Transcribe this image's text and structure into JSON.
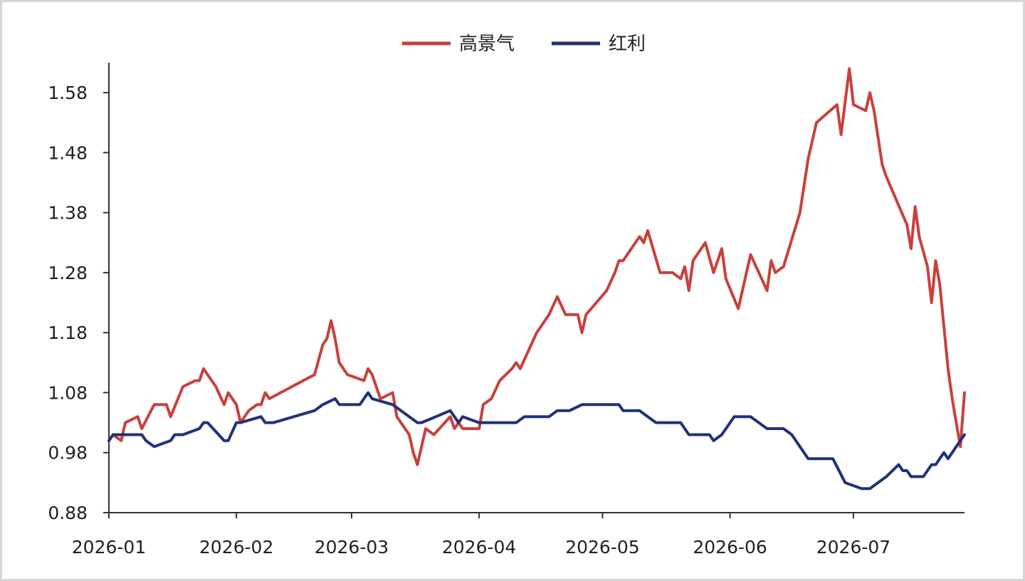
{
  "chart_data": {
    "type": "line",
    "title": "",
    "xlabel": "",
    "ylabel": "",
    "x_tick_labels": [
      "2026-01",
      "2026-02",
      "2026-03",
      "2026-04",
      "2026-05",
      "2026-06",
      "2026-07"
    ],
    "y_ticks": [
      0.88,
      0.98,
      1.08,
      1.18,
      1.28,
      1.38,
      1.48,
      1.58
    ],
    "y_tick_labels": [
      "0.88",
      "0.98",
      "1.08",
      "1.18",
      "1.28",
      "1.38",
      "1.48",
      "1.58"
    ],
    "ylim": [
      0.88,
      1.63
    ],
    "xlim": [
      "2026-01-01",
      "2026-07-28"
    ],
    "grid": false,
    "legend_position": "top-center",
    "series": [
      {
        "name": "高景气",
        "color": "#c8413c",
        "points": [
          [
            "2026-01-01",
            1.0
          ],
          [
            "2026-01-02",
            1.01
          ],
          [
            "2026-01-04",
            1.0
          ],
          [
            "2026-01-05",
            1.03
          ],
          [
            "2026-01-08",
            1.04
          ],
          [
            "2026-01-09",
            1.02
          ],
          [
            "2026-01-12",
            1.06
          ],
          [
            "2026-01-15",
            1.06
          ],
          [
            "2026-01-16",
            1.04
          ],
          [
            "2026-01-19",
            1.09
          ],
          [
            "2026-01-22",
            1.1
          ],
          [
            "2026-01-23",
            1.1
          ],
          [
            "2026-01-24",
            1.12
          ],
          [
            "2026-01-25",
            1.11
          ],
          [
            "2026-01-27",
            1.09
          ],
          [
            "2026-01-29",
            1.06
          ],
          [
            "2026-01-30",
            1.08
          ],
          [
            "2026-02-01",
            1.06
          ],
          [
            "2026-02-02",
            1.03
          ],
          [
            "2026-02-04",
            1.05
          ],
          [
            "2026-02-06",
            1.06
          ],
          [
            "2026-02-07",
            1.06
          ],
          [
            "2026-02-08",
            1.08
          ],
          [
            "2026-02-09",
            1.07
          ],
          [
            "2026-02-20",
            1.11
          ],
          [
            "2026-02-22",
            1.16
          ],
          [
            "2026-02-23",
            1.17
          ],
          [
            "2026-02-24",
            1.2
          ],
          [
            "2026-02-25",
            1.17
          ],
          [
            "2026-02-26",
            1.13
          ],
          [
            "2026-02-28",
            1.11
          ],
          [
            "2026-03-04",
            1.1
          ],
          [
            "2026-03-05",
            1.12
          ],
          [
            "2026-03-06",
            1.11
          ],
          [
            "2026-03-08",
            1.07
          ],
          [
            "2026-03-11",
            1.08
          ],
          [
            "2026-03-12",
            1.04
          ],
          [
            "2026-03-14",
            1.02
          ],
          [
            "2026-03-15",
            1.01
          ],
          [
            "2026-03-16",
            0.98
          ],
          [
            "2026-03-17",
            0.96
          ],
          [
            "2026-03-19",
            1.02
          ],
          [
            "2026-03-21",
            1.01
          ],
          [
            "2026-03-25",
            1.04
          ],
          [
            "2026-03-26",
            1.02
          ],
          [
            "2026-03-27",
            1.03
          ],
          [
            "2026-03-28",
            1.02
          ],
          [
            "2026-04-01",
            1.02
          ],
          [
            "2026-04-02",
            1.06
          ],
          [
            "2026-04-04",
            1.07
          ],
          [
            "2026-04-06",
            1.1
          ],
          [
            "2026-04-09",
            1.12
          ],
          [
            "2026-04-10",
            1.13
          ],
          [
            "2026-04-11",
            1.12
          ],
          [
            "2026-04-13",
            1.15
          ],
          [
            "2026-04-15",
            1.18
          ],
          [
            "2026-04-18",
            1.21
          ],
          [
            "2026-04-20",
            1.24
          ],
          [
            "2026-04-22",
            1.21
          ],
          [
            "2026-04-25",
            1.21
          ],
          [
            "2026-04-26",
            1.18
          ],
          [
            "2026-04-27",
            1.21
          ],
          [
            "2026-05-02",
            1.25
          ],
          [
            "2026-05-04",
            1.28
          ],
          [
            "2026-05-05",
            1.3
          ],
          [
            "2026-05-06",
            1.3
          ],
          [
            "2026-05-08",
            1.32
          ],
          [
            "2026-05-10",
            1.34
          ],
          [
            "2026-05-11",
            1.33
          ],
          [
            "2026-05-12",
            1.35
          ],
          [
            "2026-05-15",
            1.28
          ],
          [
            "2026-05-18",
            1.28
          ],
          [
            "2026-05-20",
            1.27
          ],
          [
            "2026-05-21",
            1.29
          ],
          [
            "2026-05-22",
            1.25
          ],
          [
            "2026-05-23",
            1.3
          ],
          [
            "2026-05-26",
            1.33
          ],
          [
            "2026-05-28",
            1.28
          ],
          [
            "2026-05-30",
            1.32
          ],
          [
            "2026-05-31",
            1.27
          ],
          [
            "2026-06-03",
            1.22
          ],
          [
            "2026-06-06",
            1.31
          ],
          [
            "2026-06-08",
            1.28
          ],
          [
            "2026-06-10",
            1.25
          ],
          [
            "2026-06-11",
            1.3
          ],
          [
            "2026-06-12",
            1.28
          ],
          [
            "2026-06-14",
            1.29
          ],
          [
            "2026-06-18",
            1.38
          ],
          [
            "2026-06-20",
            1.47
          ],
          [
            "2026-06-22",
            1.53
          ],
          [
            "2026-06-27",
            1.56
          ],
          [
            "2026-06-28",
            1.51
          ],
          [
            "2026-06-30",
            1.62
          ],
          [
            "2026-07-01",
            1.56
          ],
          [
            "2026-07-04",
            1.55
          ],
          [
            "2026-07-05",
            1.58
          ],
          [
            "2026-07-06",
            1.55
          ],
          [
            "2026-07-08",
            1.46
          ],
          [
            "2026-07-09",
            1.44
          ],
          [
            "2026-07-14",
            1.36
          ],
          [
            "2026-07-15",
            1.32
          ],
          [
            "2026-07-16",
            1.39
          ],
          [
            "2026-07-17",
            1.34
          ],
          [
            "2026-07-19",
            1.29
          ],
          [
            "2026-07-20",
            1.23
          ],
          [
            "2026-07-21",
            1.3
          ],
          [
            "2026-07-22",
            1.26
          ],
          [
            "2026-07-23",
            1.19
          ],
          [
            "2026-07-24",
            1.12
          ],
          [
            "2026-07-25",
            1.07
          ],
          [
            "2026-07-26",
            1.03
          ],
          [
            "2026-07-27",
            0.99
          ],
          [
            "2026-07-28",
            1.08
          ]
        ]
      },
      {
        "name": "红利",
        "color": "#1f3377",
        "points": [
          [
            "2026-01-01",
            1.0
          ],
          [
            "2026-01-02",
            1.01
          ],
          [
            "2026-01-04",
            1.01
          ],
          [
            "2026-01-06",
            1.01
          ],
          [
            "2026-01-09",
            1.01
          ],
          [
            "2026-01-10",
            1.0
          ],
          [
            "2026-01-12",
            0.99
          ],
          [
            "2026-01-16",
            1.0
          ],
          [
            "2026-01-17",
            1.01
          ],
          [
            "2026-01-19",
            1.01
          ],
          [
            "2026-01-23",
            1.02
          ],
          [
            "2026-01-24",
            1.03
          ],
          [
            "2026-01-25",
            1.03
          ],
          [
            "2026-01-29",
            1.0
          ],
          [
            "2026-01-30",
            1.0
          ],
          [
            "2026-02-01",
            1.03
          ],
          [
            "2026-02-02",
            1.03
          ],
          [
            "2026-02-07",
            1.04
          ],
          [
            "2026-02-08",
            1.03
          ],
          [
            "2026-02-10",
            1.03
          ],
          [
            "2026-02-20",
            1.05
          ],
          [
            "2026-02-22",
            1.06
          ],
          [
            "2026-02-25",
            1.07
          ],
          [
            "2026-02-26",
            1.06
          ],
          [
            "2026-03-01",
            1.06
          ],
          [
            "2026-03-03",
            1.06
          ],
          [
            "2026-03-05",
            1.08
          ],
          [
            "2026-03-06",
            1.07
          ],
          [
            "2026-03-11",
            1.06
          ],
          [
            "2026-03-13",
            1.05
          ],
          [
            "2026-03-17",
            1.03
          ],
          [
            "2026-03-18",
            1.03
          ],
          [
            "2026-03-25",
            1.05
          ],
          [
            "2026-03-27",
            1.03
          ],
          [
            "2026-03-28",
            1.04
          ],
          [
            "2026-04-01",
            1.03
          ],
          [
            "2026-04-04",
            1.03
          ],
          [
            "2026-04-10",
            1.03
          ],
          [
            "2026-04-12",
            1.04
          ],
          [
            "2026-04-18",
            1.04
          ],
          [
            "2026-04-20",
            1.05
          ],
          [
            "2026-04-23",
            1.05
          ],
          [
            "2026-04-26",
            1.06
          ],
          [
            "2026-05-05",
            1.06
          ],
          [
            "2026-05-06",
            1.05
          ],
          [
            "2026-05-10",
            1.05
          ],
          [
            "2026-05-14",
            1.03
          ],
          [
            "2026-05-18",
            1.03
          ],
          [
            "2026-05-20",
            1.03
          ],
          [
            "2026-05-22",
            1.01
          ],
          [
            "2026-05-27",
            1.01
          ],
          [
            "2026-05-28",
            1.0
          ],
          [
            "2026-05-30",
            1.01
          ],
          [
            "2026-06-02",
            1.04
          ],
          [
            "2026-06-06",
            1.04
          ],
          [
            "2026-06-10",
            1.02
          ],
          [
            "2026-06-12",
            1.02
          ],
          [
            "2026-06-14",
            1.02
          ],
          [
            "2026-06-16",
            1.01
          ],
          [
            "2026-06-20",
            0.97
          ],
          [
            "2026-06-24",
            0.97
          ],
          [
            "2026-06-26",
            0.97
          ],
          [
            "2026-06-29",
            0.93
          ],
          [
            "2026-07-03",
            0.92
          ],
          [
            "2026-07-05",
            0.92
          ],
          [
            "2026-07-09",
            0.94
          ],
          [
            "2026-07-12",
            0.96
          ],
          [
            "2026-07-13",
            0.95
          ],
          [
            "2026-07-14",
            0.95
          ],
          [
            "2026-07-15",
            0.94
          ],
          [
            "2026-07-17",
            0.94
          ],
          [
            "2026-07-18",
            0.94
          ],
          [
            "2026-07-20",
            0.96
          ],
          [
            "2026-07-21",
            0.96
          ],
          [
            "2026-07-23",
            0.98
          ],
          [
            "2026-07-24",
            0.97
          ],
          [
            "2026-07-25",
            0.98
          ],
          [
            "2026-07-26",
            0.99
          ],
          [
            "2026-07-27",
            1.0
          ],
          [
            "2026-07-28",
            1.01
          ]
        ]
      }
    ]
  }
}
